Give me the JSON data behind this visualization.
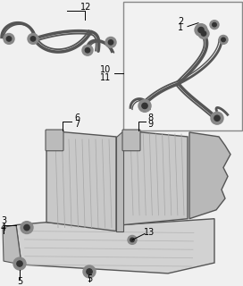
{
  "bg_color": "#f0f0f0",
  "lc": "#555555",
  "dc": "#333333",
  "pc": "#888888",
  "lc2": "#999999",
  "figsize": [
    2.72,
    3.2
  ],
  "dpi": 100,
  "seat_bg": "#c8c8c8",
  "seat_stripe": "#aaaaaa",
  "cushion_bg": "#d2d2d2",
  "box_edge": "#888888",
  "box_face": "#f2f2f2"
}
